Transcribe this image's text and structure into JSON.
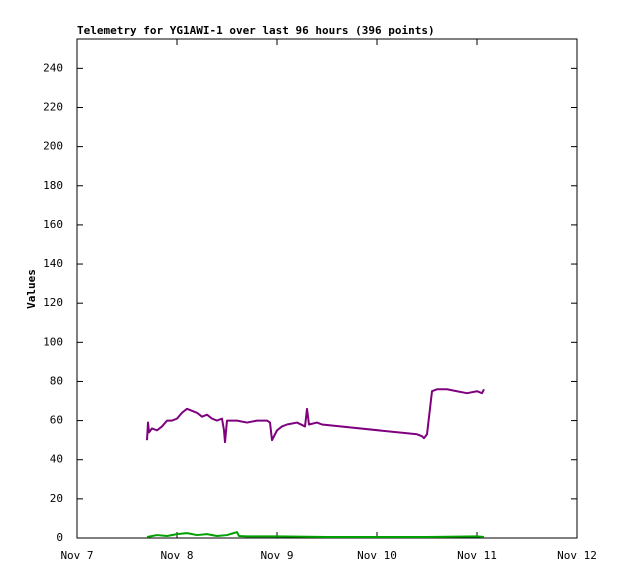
{
  "chart_data": {
    "type": "line",
    "title": "Telemetry for YG1AWI-1 over last 96 hours (396 points)",
    "y_label": "Values",
    "xlim": [
      7,
      12
    ],
    "xticks": [
      {
        "value": 7,
        "label": "Nov 7"
      },
      {
        "value": 8,
        "label": "Nov 8"
      },
      {
        "value": 9,
        "label": "Nov 9"
      },
      {
        "value": 10,
        "label": "Nov 10"
      },
      {
        "value": 11,
        "label": "Nov 11"
      },
      {
        "value": 12,
        "label": "Nov 12"
      }
    ],
    "ylim": [
      0,
      255
    ],
    "yticks": [
      0,
      20,
      40,
      60,
      80,
      100,
      120,
      140,
      160,
      180,
      200,
      220,
      240
    ],
    "grid": false,
    "series": [
      {
        "color": "#7f007f",
        "x": [
          7.7,
          7.71,
          7.72,
          7.75,
          7.8,
          7.85,
          7.9,
          7.95,
          8.0,
          8.05,
          8.1,
          8.15,
          8.2,
          8.25,
          8.3,
          8.35,
          8.4,
          8.45,
          8.47,
          8.48,
          8.5,
          8.6,
          8.7,
          8.8,
          8.9,
          8.93,
          8.95,
          9.0,
          9.05,
          9.1,
          9.2,
          9.28,
          9.3,
          9.32,
          9.4,
          9.45,
          10.4,
          10.45,
          10.47,
          10.5,
          10.55,
          10.6,
          10.7,
          10.8,
          10.9,
          11.0,
          11.05,
          11.07
        ],
        "values": [
          50,
          59,
          54,
          56,
          55,
          57,
          60,
          60,
          61,
          64,
          66,
          65,
          64,
          62,
          63,
          61,
          60,
          61,
          55,
          49,
          60,
          60,
          59,
          60,
          60,
          59,
          50,
          55,
          57,
          58,
          59,
          57,
          66,
          58,
          59,
          58,
          53,
          52,
          51,
          53,
          75,
          76,
          76,
          75,
          74,
          75,
          74,
          76
        ]
      },
      {
        "color": "#00a000",
        "x": [
          7.7,
          7.8,
          7.9,
          8.0,
          8.1,
          8.2,
          8.3,
          8.4,
          8.5,
          8.6,
          8.62,
          8.7,
          9.0,
          9.5,
          10.0,
          10.5,
          11.0,
          11.07
        ],
        "values": [
          0.5,
          1.5,
          1,
          2,
          2.5,
          1.5,
          2,
          1,
          1.5,
          3,
          1,
          0.8,
          0.8,
          0.5,
          0.5,
          0.5,
          0.8,
          0.5
        ]
      }
    ]
  }
}
